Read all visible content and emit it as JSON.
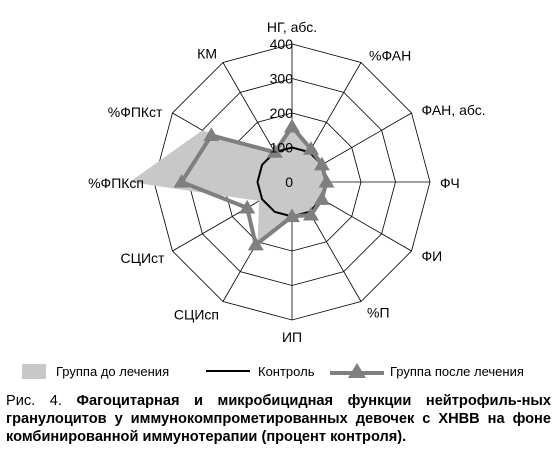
{
  "chart_data": {
    "type": "radar",
    "axes": [
      "НГ, абс.",
      "%ФАН",
      "ФАН, абс.",
      "ФЧ",
      "ФИ",
      "%П",
      "ИП",
      "СЦИсп",
      "СЦИст",
      "%ФПКсп",
      "%ФПКст",
      "КМ"
    ],
    "rlim": [
      0,
      400
    ],
    "ticks": [
      0,
      100,
      200,
      300,
      400
    ],
    "tick_labels": [
      "0",
      "100",
      "200",
      "300",
      "400"
    ],
    "grid": true,
    "legend_position": "bottom",
    "series": [
      {
        "name": "Группа до лечения",
        "style": "area",
        "color": "#c8c8c8",
        "values": [
          150,
          110,
          100,
          110,
          100,
          100,
          100,
          200,
          110,
          470,
          300,
          100
        ]
      },
      {
        "name": "Контроль",
        "style": "line",
        "color": "#000000",
        "values": [
          100,
          100,
          100,
          100,
          100,
          100,
          100,
          100,
          100,
          100,
          100,
          100
        ]
      },
      {
        "name": "Группа после лечения",
        "style": "line-triangle",
        "color": "#7f7f7f",
        "values": [
          160,
          110,
          100,
          100,
          100,
          110,
          100,
          210,
          150,
          320,
          270,
          100
        ]
      }
    ]
  },
  "caption": {
    "prefix": "Рис. 4. ",
    "text": "Фагоцитарная и микробицидная функции нейтрофиль-ных гранулоцитов у иммунокомпрометированных девочек с ХНВВ на фоне комбинированной иммунотерапии (процент контроля)."
  }
}
